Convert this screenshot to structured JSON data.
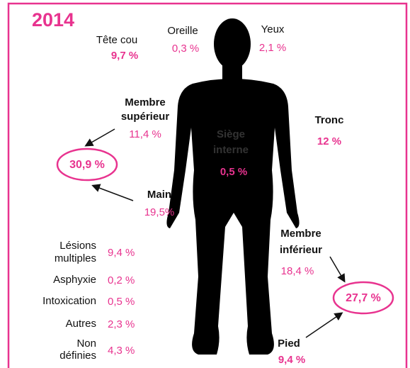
{
  "title": "2014",
  "parts": [
    {
      "label": [
        "Tête cou"
      ],
      "value": "9,7 %"
    },
    {
      "label": [
        "Oreille"
      ],
      "value": "0,3 %"
    },
    {
      "label": [
        "Yeux"
      ],
      "value": "2,1 %"
    },
    {
      "label": [
        "Membre",
        "supérieur"
      ],
      "value": "11,4 %"
    },
    {
      "label": [
        "Tronc"
      ],
      "value": "12 %"
    },
    {
      "label": [
        "Siège",
        "interne"
      ],
      "value": "0,5 %"
    },
    {
      "label": [
        "Main"
      ],
      "value": "19,5%"
    },
    {
      "label": [
        "Membre",
        "inférieur"
      ],
      "value": "18,4 %"
    },
    {
      "label": [
        "Pied"
      ],
      "value": "9,4 %"
    }
  ],
  "totals": {
    "upper": "30,9 %",
    "lower": "27,7 %"
  },
  "others": [
    {
      "label": [
        "Lésions",
        "multiples"
      ],
      "value": "9,4 %"
    },
    {
      "label": [
        "Asphyxie"
      ],
      "value": "0,2 %"
    },
    {
      "label": [
        "Intoxication"
      ],
      "value": "0,5 %"
    },
    {
      "label": [
        "Autres"
      ],
      "value": "2,3 %"
    },
    {
      "label": [
        "Non",
        "définies"
      ],
      "value": "4,3 %"
    }
  ]
}
